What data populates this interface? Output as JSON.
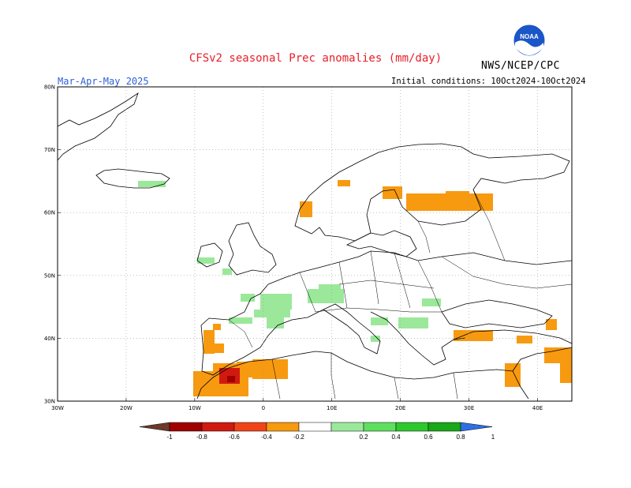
{
  "header": {
    "title": "CFSv2 seasonal Prec anomalies (mm/day)",
    "season": "Mar-Apr-May 2025",
    "initial_conditions": "Initial conditions: 10Oct2024-10Oct2024",
    "agency": "NWS/NCEP/CPC",
    "logo_text": "NOAA"
  },
  "map": {
    "lon_range": [
      -30,
      45
    ],
    "lat_range": [
      30,
      80
    ],
    "lat_ticks": [
      "80N",
      "70N",
      "60N",
      "50N",
      "40N",
      "30N"
    ],
    "lon_ticks": [
      "30W",
      "20W",
      "10W",
      "0",
      "10E",
      "20E",
      "30E",
      "40E"
    ],
    "grid": "dotted",
    "grid_color": "#9a9a9a",
    "coast_color": "#000000"
  },
  "legend": {
    "labels": [
      "-1",
      "-0.8",
      "-0.6",
      "-0.4",
      "-0.2",
      "0.2",
      "0.4",
      "0.6",
      "0.8",
      "1"
    ],
    "colors": {
      "below_min": "#6b3a2a",
      "dry": [
        "#a00000",
        "#d01a10",
        "#f04418",
        "#f79a10"
      ],
      "neutral": "#ffffff",
      "wet": [
        "#9be89b",
        "#5ee05e",
        "#2cc82c",
        "#18a818"
      ],
      "above_max": "#2f6fe6"
    }
  },
  "anomaly_regions": [
    {
      "name": "Iceland",
      "sign": "wet",
      "level": 1
    },
    {
      "name": "Ireland",
      "sign": "wet",
      "level": 1
    },
    {
      "name": "Brittany",
      "sign": "wet",
      "level": 1
    },
    {
      "name": "France",
      "sign": "wet",
      "level": 1
    },
    {
      "name": "Alps",
      "sign": "wet",
      "level": 1
    },
    {
      "name": "Pyrenees",
      "sign": "wet",
      "level": 1
    },
    {
      "name": "Balkans",
      "sign": "wet",
      "level": 1
    },
    {
      "name": "Portugal",
      "sign": "dry",
      "level": 1
    },
    {
      "name": "Morocco",
      "sign": "dry",
      "level": 3
    },
    {
      "name": "Algeria",
      "sign": "dry",
      "level": 1
    },
    {
      "name": "Norway coast",
      "sign": "dry",
      "level": 1
    },
    {
      "name": "Finland",
      "sign": "dry",
      "level": 1
    },
    {
      "name": "Turkey",
      "sign": "dry",
      "level": 1
    },
    {
      "name": "Middle East",
      "sign": "dry",
      "level": 1
    }
  ]
}
